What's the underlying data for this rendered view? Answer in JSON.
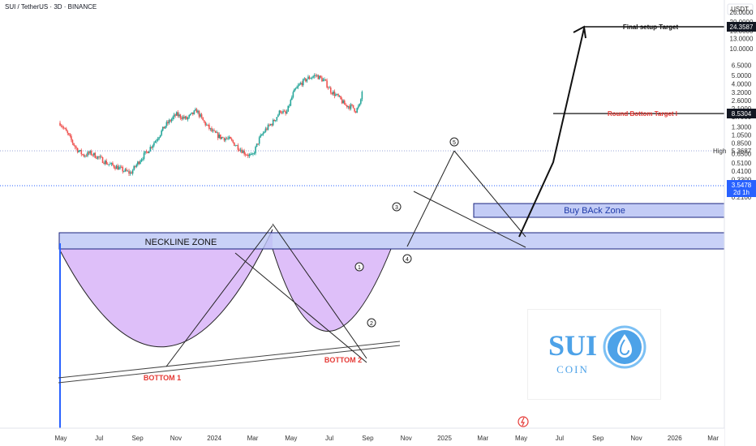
{
  "header": {
    "title": "SUI / TetherUS · 3D · BINANCE"
  },
  "price_scale": {
    "currency": "USDT",
    "ticks": [
      "26.0000",
      "20.0000",
      "16.0000",
      "13.0000",
      "10.0000",
      "6.5000",
      "5.0000",
      "4.0000",
      "3.2000",
      "2.6000",
      "2.1000",
      "1.7000",
      "1.3000",
      "1.0500",
      "0.8500",
      "0.6500",
      "0.5100",
      "0.4100",
      "0.3300",
      "0.2600",
      "0.2100"
    ],
    "tags": {
      "target_final": "24.3587",
      "target_round": "8.5304",
      "high_label": "High",
      "high_value": "5.3687",
      "current_value": "3.5478",
      "current_countdown": "2d 1h"
    }
  },
  "time_axis": {
    "ticks": [
      "May",
      "Jul",
      "Sep",
      "Nov",
      "2024",
      "Mar",
      "May",
      "Jul",
      "Sep",
      "Nov",
      "2025",
      "Mar",
      "May",
      "Jul",
      "Sep",
      "Nov",
      "2026",
      "Mar"
    ]
  },
  "annotations": {
    "neckline": "NECKLINE ZONE",
    "bottom1": "BOTTOM 1",
    "bottom2": "BOTTOM 2",
    "buyback": "Buy BAck Zone",
    "final_target": "Final setup Target",
    "round_target": "Round Bottom Target I",
    "waves": [
      "1",
      "2",
      "3",
      "4",
      "5"
    ]
  },
  "logo": {
    "main": "SUI",
    "sub": "COIN"
  },
  "colors": {
    "up": "#26a69a",
    "down": "#ef5350",
    "zone_fill": "#bcc6f5",
    "cup_fill": "#d8b4f8",
    "current": "#2962ff",
    "target_red": "#e53935",
    "logo_blue": "#4da2e8"
  },
  "chart_data": {
    "type": "candlestick",
    "scale": "log",
    "ylim": [
      0.18,
      30
    ],
    "x_range": [
      "2023-05",
      "2026-03"
    ],
    "interval": "3D",
    "close_path": [
      [
        "2023-05-03",
        1.45
      ],
      [
        "2023-05-20",
        1.1
      ],
      [
        "2023-06-10",
        0.75
      ],
      [
        "2023-06-28",
        0.62
      ],
      [
        "2023-07-15",
        0.66
      ],
      [
        "2023-08-05",
        0.58
      ],
      [
        "2023-08-25",
        0.5
      ],
      [
        "2023-09-15",
        0.46
      ],
      [
        "2023-10-01",
        0.42
      ],
      [
        "2023-10-19",
        0.39
      ],
      [
        "2023-11-10",
        0.55
      ],
      [
        "2023-12-01",
        0.72
      ],
      [
        "2023-12-20",
        0.95
      ],
      [
        "2024-01-10",
        1.35
      ],
      [
        "2024-02-05",
        1.8
      ],
      [
        "2024-03-01",
        1.6
      ],
      [
        "2024-03-25",
        2.0
      ],
      [
        "2024-04-10",
        1.5
      ],
      [
        "2024-05-01",
        1.15
      ],
      [
        "2024-05-20",
        1.0
      ],
      [
        "2024-06-10",
        0.95
      ],
      [
        "2024-07-05",
        0.75
      ],
      [
        "2024-07-20",
        0.65
      ],
      [
        "2024-08-05",
        0.6
      ],
      [
        "2024-08-22",
        0.95
      ],
      [
        "2024-09-05",
        1.2
      ],
      [
        "2024-09-25",
        1.5
      ],
      [
        "2024-10-12",
        2.0
      ],
      [
        "2024-10-25",
        1.8
      ],
      [
        "2024-11-12",
        3.2
      ],
      [
        "2024-11-28",
        4.0
      ],
      [
        "2024-12-15",
        4.6
      ],
      [
        "2025-01-05",
        5.0
      ],
      [
        "2025-01-25",
        4.3
      ],
      [
        "2025-02-10",
        3.3
      ],
      [
        "2025-02-28",
        2.8
      ],
      [
        "2025-03-15",
        2.3
      ],
      [
        "2025-04-01",
        2.2
      ],
      [
        "2025-04-10",
        2.0
      ],
      [
        "2025-04-20",
        2.3
      ],
      [
        "2025-04-26",
        3.55
      ]
    ],
    "levels": {
      "final_target": 24.3587,
      "round_bottom_target": 8.5304,
      "high": 5.3687,
      "current": 3.5478,
      "neckline_zone": [
        1.72,
        2.05
      ],
      "buyback_zone": [
        2.5,
        2.95
      ]
    }
  }
}
